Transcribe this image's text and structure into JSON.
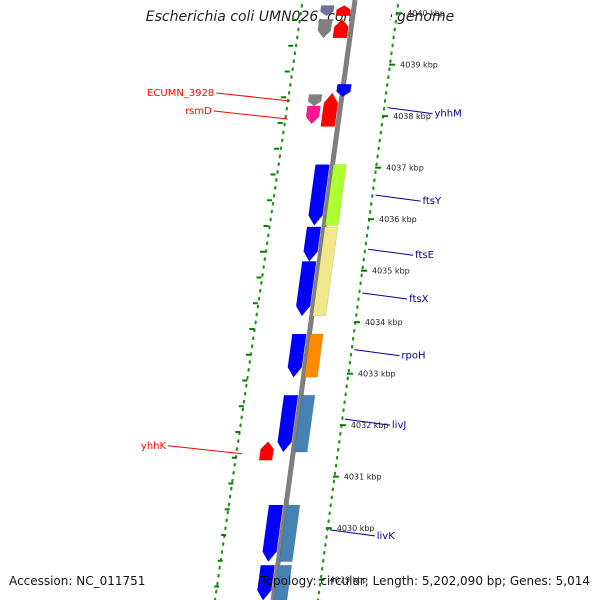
{
  "title": "Escherichia coli UMN026, complete genome",
  "footer": {
    "accession": "Accession: NC_011751",
    "summary": "Topology: circular; Length: 5,202,090 bp; Genes: 5,014"
  },
  "colors": {
    "backbone": "#7f7f7f",
    "tick": "#008000",
    "dot": "#2e8b2e",
    "label_forward": "#ff0000",
    "label_reverse": "#00008b",
    "forward_cds": "#ff0000",
    "reverse_cds": "#0000ff",
    "hypothetical": "#808080",
    "methyltransferase": "#ff1493",
    "cog_S": "#adff2f",
    "cog_D": "#f0e68c",
    "cog_K": "#ff8c00",
    "cog_E": "#4682b4"
  },
  "chart_data": {
    "type": "linear-genome-map",
    "scale_ticks": [
      {
        "kbp": 4040,
        "label": "4040 kbp"
      },
      {
        "kbp": 4039,
        "label": "4039 kbp"
      },
      {
        "kbp": 4038,
        "label": "4038 kbp"
      },
      {
        "kbp": 4037,
        "label": "4037 kbp"
      },
      {
        "kbp": 4036,
        "label": "4036 kbp"
      },
      {
        "kbp": 4035,
        "label": "4035 kbp"
      },
      {
        "kbp": 4034,
        "label": "4034 kbp"
      },
      {
        "kbp": 4033,
        "label": "4033 kbp"
      },
      {
        "kbp": 4032,
        "label": "4032 kbp"
      },
      {
        "kbp": 4031,
        "label": "4031 kbp"
      },
      {
        "kbp": 4030,
        "label": "4030 kbp"
      },
      {
        "kbp": 4029,
        "label": "4029 kbp"
      }
    ],
    "features": [
      {
        "id": "f1",
        "strand": "-",
        "lane": "reverse",
        "start_kbp": 4040.15,
        "end_kbp": 4039.95,
        "color": "#7070a0"
      },
      {
        "id": "f2",
        "strand": "+",
        "lane": "forward",
        "start_kbp": 4040.15,
        "end_kbp": 4039.95,
        "color": "#ff0000"
      },
      {
        "id": "f3",
        "strand": "-",
        "lane": "reverse",
        "start_kbp": 4039.88,
        "end_kbp": 4039.52,
        "color": "#808080"
      },
      {
        "id": "f4",
        "strand": "+",
        "lane": "forward",
        "start_kbp": 4039.88,
        "end_kbp": 4039.52,
        "color": "#ff0000"
      },
      {
        "id": "f5",
        "strand": "-",
        "lane": "outer",
        "start_kbp": 4038.62,
        "end_kbp": 4038.38,
        "color": "#0000ff"
      },
      {
        "id": "ECUMN_3928",
        "strand": "-",
        "lane": "reverse",
        "start_kbp": 4038.42,
        "end_kbp": 4038.2,
        "color": "#808080"
      },
      {
        "id": "rsmD",
        "strand": "-",
        "lane": "reverse",
        "start_kbp": 4038.2,
        "end_kbp": 4037.85,
        "color": "#ff1493"
      },
      {
        "id": "rsmD_fwd",
        "strand": "+",
        "lane": "forward",
        "start_kbp": 4038.45,
        "end_kbp": 4037.8,
        "color": "#ff0000"
      },
      {
        "id": "ftsY",
        "strand": "-",
        "lane": "forward",
        "start_kbp": 4037.06,
        "end_kbp": 4035.88,
        "color": "#0000ff"
      },
      {
        "id": "ftsY_cog",
        "strand": "none",
        "lane": "cog",
        "start_kbp": 4037.06,
        "end_kbp": 4035.88,
        "color": "#adff2f"
      },
      {
        "id": "ftsE",
        "strand": "-",
        "lane": "forward",
        "start_kbp": 4035.85,
        "end_kbp": 4035.18,
        "color": "#0000ff"
      },
      {
        "id": "ftsX",
        "strand": "-",
        "lane": "forward",
        "start_kbp": 4035.18,
        "end_kbp": 4034.12,
        "color": "#0000ff"
      },
      {
        "id": "ftsEX_cog",
        "strand": "none",
        "lane": "cog",
        "start_kbp": 4035.85,
        "end_kbp": 4034.12,
        "color": "#f0e68c"
      },
      {
        "id": "rpoH",
        "strand": "-",
        "lane": "forward",
        "start_kbp": 4033.77,
        "end_kbp": 4032.93,
        "color": "#0000ff"
      },
      {
        "id": "rpoH_cog",
        "strand": "none",
        "lane": "cog",
        "start_kbp": 4033.77,
        "end_kbp": 4032.93,
        "color": "#ff8c00"
      },
      {
        "id": "livJ",
        "strand": "-",
        "lane": "forward",
        "start_kbp": 4032.58,
        "end_kbp": 4031.48,
        "color": "#0000ff"
      },
      {
        "id": "livJ_cog",
        "strand": "none",
        "lane": "cog",
        "start_kbp": 4032.58,
        "end_kbp": 4031.48,
        "color": "#4682b4"
      },
      {
        "id": "yhhK",
        "strand": "+",
        "lane": "reverse",
        "start_kbp": 4031.68,
        "end_kbp": 4031.32,
        "color": "#ff0000"
      },
      {
        "id": "livK",
        "strand": "-",
        "lane": "forward",
        "start_kbp": 4030.45,
        "end_kbp": 4029.35,
        "color": "#0000ff"
      },
      {
        "id": "livK_cog",
        "strand": "none",
        "lane": "cog",
        "start_kbp": 4030.45,
        "end_kbp": 4029.35,
        "color": "#4682b4"
      },
      {
        "id": "f_next",
        "strand": "-",
        "lane": "forward",
        "start_kbp": 4029.28,
        "end_kbp": 4028.6,
        "color": "#0000ff"
      },
      {
        "id": "f_next_cog",
        "strand": "none",
        "lane": "cog",
        "start_kbp": 4029.28,
        "end_kbp": 4028.6,
        "color": "#4682b4"
      }
    ],
    "labels": [
      {
        "text": "ECUMN_3928",
        "side": "left",
        "kbp": 4038.45,
        "color": "#ff0000"
      },
      {
        "text": "rsmD",
        "side": "left",
        "kbp": 4038.1,
        "color": "#ff0000"
      },
      {
        "text": "yhhM",
        "side": "right",
        "kbp": 4038.05,
        "color": "#00008b"
      },
      {
        "text": "ftsY",
        "side": "right",
        "kbp": 4036.35,
        "color": "#00008b"
      },
      {
        "text": "ftsE",
        "side": "right",
        "kbp": 4035.3,
        "color": "#00008b"
      },
      {
        "text": "ftsX",
        "side": "right",
        "kbp": 4034.45,
        "color": "#00008b"
      },
      {
        "text": "rpoH",
        "side": "right",
        "kbp": 4033.35,
        "color": "#00008b"
      },
      {
        "text": "livJ",
        "side": "right",
        "kbp": 4032.0,
        "color": "#00008b"
      },
      {
        "text": "yhhK",
        "side": "left",
        "kbp": 4031.6,
        "color": "#ff0000"
      },
      {
        "text": "livK",
        "side": "right",
        "kbp": 4029.85,
        "color": "#00008b"
      }
    ]
  }
}
